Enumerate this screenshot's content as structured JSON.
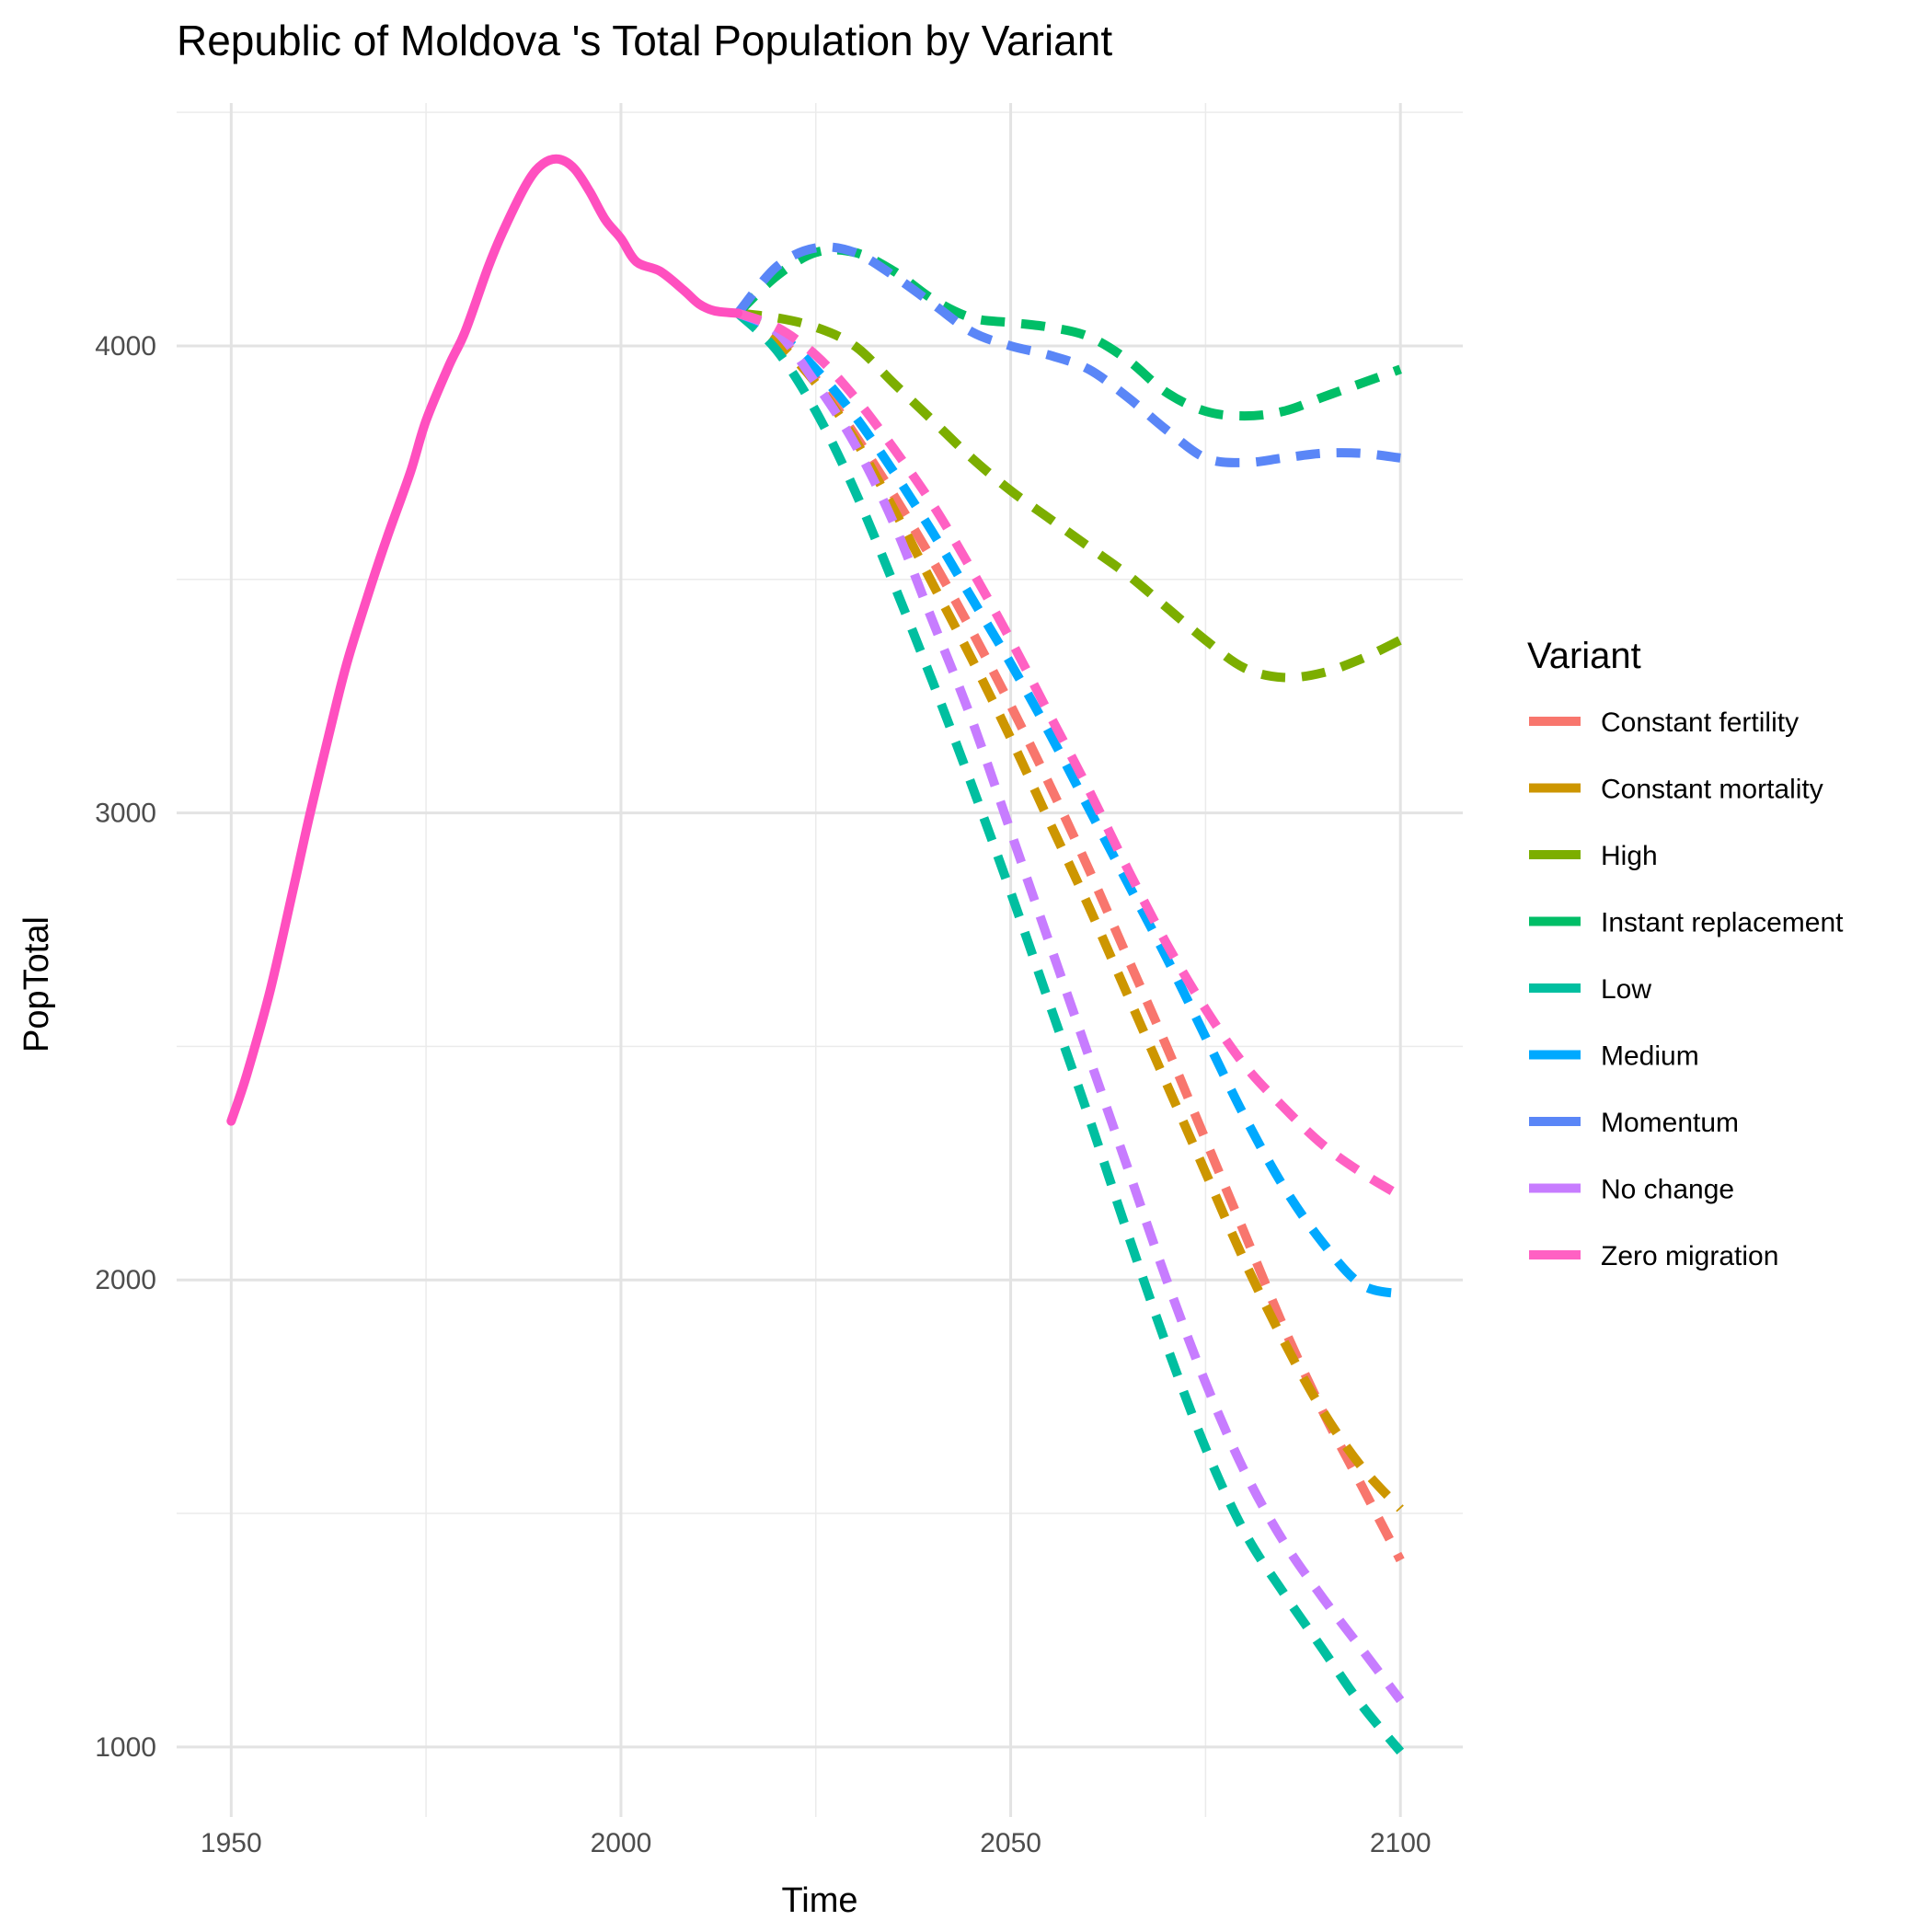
{
  "chart_data": {
    "type": "line",
    "title": "Republic of Moldova 's Total Population by Variant",
    "xlabel": "Time",
    "ylabel": "PopTotal",
    "xlim": [
      1943,
      2108
    ],
    "ylim": [
      850,
      4520
    ],
    "x_ticks": [
      1950,
      2000,
      2050,
      2100
    ],
    "x_tick_labels": [
      "1950",
      "2000",
      "2050",
      "2100"
    ],
    "y_ticks": [
      1000,
      2000,
      3000,
      4000
    ],
    "y_tick_labels": [
      "1000",
      "2000",
      "3000",
      "4000"
    ],
    "grid": true,
    "legend_title": "Variant",
    "legend_position": "right",
    "historical": {
      "color": "#FF4FBF",
      "x": [
        1950,
        1952,
        1955,
        1958,
        1960,
        1963,
        1965,
        1968,
        1970,
        1973,
        1975,
        1978,
        1980,
        1983,
        1985,
        1988,
        1990,
        1992,
        1994,
        1996,
        1998,
        2000,
        2002,
        2005,
        2008,
        2010,
        2012,
        2015
      ],
      "y": [
        2340,
        2440,
        2620,
        2840,
        2990,
        3200,
        3330,
        3490,
        3590,
        3730,
        3840,
        3960,
        4030,
        4170,
        4250,
        4350,
        4390,
        4400,
        4380,
        4330,
        4270,
        4230,
        4180,
        4160,
        4120,
        4090,
        4075,
        4070
      ]
    },
    "series": [
      {
        "name": "Constant fertility",
        "color": "#F8766D",
        "x": [
          2015,
          2020,
          2025,
          2030,
          2035,
          2040,
          2045,
          2050,
          2055,
          2060,
          2065,
          2070,
          2075,
          2080,
          2085,
          2090,
          2095,
          2100
        ],
        "y": [
          4070,
          4020,
          3930,
          3810,
          3680,
          3540,
          3390,
          3230,
          3060,
          2880,
          2690,
          2500,
          2300,
          2100,
          1900,
          1720,
          1560,
          1400
        ]
      },
      {
        "name": "Constant mortality",
        "color": "#CD9600",
        "x": [
          2015,
          2020,
          2025,
          2030,
          2035,
          2040,
          2045,
          2050,
          2055,
          2060,
          2065,
          2070,
          2075,
          2080,
          2085,
          2090,
          2095,
          2100
        ],
        "y": [
          4070,
          4010,
          3920,
          3800,
          3650,
          3490,
          3330,
          3160,
          2980,
          2800,
          2610,
          2420,
          2230,
          2040,
          1870,
          1720,
          1600,
          1510
        ]
      },
      {
        "name": "High",
        "color": "#7CAE00",
        "x": [
          2015,
          2020,
          2025,
          2030,
          2035,
          2040,
          2045,
          2050,
          2055,
          2060,
          2065,
          2070,
          2075,
          2080,
          2085,
          2090,
          2095,
          2100
        ],
        "y": [
          4070,
          4060,
          4040,
          4000,
          3920,
          3840,
          3760,
          3690,
          3630,
          3570,
          3510,
          3440,
          3370,
          3310,
          3290,
          3300,
          3330,
          3370
        ]
      },
      {
        "name": "Instant replacement",
        "color": "#00BE67",
        "x": [
          2015,
          2020,
          2025,
          2030,
          2035,
          2040,
          2045,
          2050,
          2055,
          2060,
          2065,
          2070,
          2075,
          2080,
          2085,
          2090,
          2095,
          2100
        ],
        "y": [
          4070,
          4150,
          4200,
          4200,
          4160,
          4100,
          4060,
          4050,
          4040,
          4020,
          3970,
          3900,
          3860,
          3850,
          3860,
          3890,
          3920,
          3950
        ]
      },
      {
        "name": "Low",
        "color": "#00BFA0",
        "x": [
          2015,
          2020,
          2025,
          2030,
          2035,
          2040,
          2045,
          2050,
          2055,
          2060,
          2065,
          2070,
          2075,
          2080,
          2085,
          2090,
          2095,
          2100
        ],
        "y": [
          4070,
          3990,
          3860,
          3690,
          3490,
          3280,
          3060,
          2830,
          2590,
          2350,
          2100,
          1860,
          1640,
          1460,
          1330,
          1210,
          1090,
          990
        ]
      },
      {
        "name": "Medium",
        "color": "#00A9FF",
        "x": [
          2015,
          2020,
          2025,
          2030,
          2035,
          2040,
          2045,
          2050,
          2055,
          2060,
          2065,
          2070,
          2075,
          2080,
          2085,
          2090,
          2095,
          2100
        ],
        "y": [
          4070,
          4030,
          3950,
          3850,
          3730,
          3600,
          3460,
          3320,
          3170,
          3010,
          2850,
          2690,
          2520,
          2350,
          2200,
          2080,
          1990,
          1970
        ]
      },
      {
        "name": "Momentum",
        "color": "#5A86F7",
        "x": [
          2015,
          2020,
          2025,
          2030,
          2035,
          2040,
          2045,
          2050,
          2055,
          2060,
          2065,
          2070,
          2075,
          2080,
          2085,
          2090,
          2095,
          2100
        ],
        "y": [
          4070,
          4170,
          4210,
          4200,
          4150,
          4090,
          4030,
          4000,
          3980,
          3950,
          3890,
          3820,
          3760,
          3750,
          3760,
          3770,
          3770,
          3760
        ]
      },
      {
        "name": "No change",
        "color": "#C77CFF",
        "x": [
          2015,
          2020,
          2025,
          2030,
          2035,
          2040,
          2045,
          2050,
          2055,
          2060,
          2065,
          2070,
          2075,
          2080,
          2085,
          2090,
          2095,
          2100
        ],
        "y": [
          4070,
          4030,
          3920,
          3790,
          3620,
          3410,
          3200,
          2960,
          2720,
          2480,
          2240,
          2000,
          1780,
          1590,
          1440,
          1320,
          1210,
          1100
        ]
      },
      {
        "name": "Zero migration",
        "color": "#FF61C3",
        "x": [
          2015,
          2020,
          2025,
          2030,
          2035,
          2040,
          2045,
          2050,
          2055,
          2060,
          2065,
          2070,
          2075,
          2080,
          2085,
          2090,
          2095,
          2100
        ],
        "y": [
          4070,
          4040,
          3980,
          3890,
          3780,
          3660,
          3520,
          3370,
          3210,
          3050,
          2880,
          2720,
          2580,
          2460,
          2370,
          2290,
          2230,
          2180
        ]
      }
    ]
  }
}
